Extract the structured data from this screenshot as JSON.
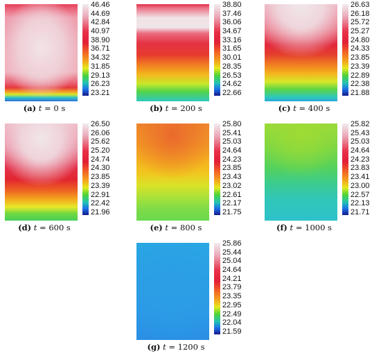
{
  "panels": [
    {
      "letter": "(a)",
      "var": "t",
      "eq": " = ",
      "time": "0 s",
      "ticks": [
        "46.46",
        "44.69",
        "42.84",
        "40.97",
        "38.90",
        "36.71",
        "34.32",
        "31.85",
        "29.13",
        "26.23",
        "23.21"
      ]
    },
    {
      "letter": "(b)",
      "var": "t",
      "eq": " = ",
      "time": "200 s",
      "ticks": [
        "38.80",
        "37.46",
        "36.06",
        "34.67",
        "33.16",
        "31.65",
        "30.01",
        "28.35",
        "26.53",
        "24.62",
        "22.66"
      ]
    },
    {
      "letter": "(c)",
      "var": "t",
      "eq": " = ",
      "time": "400 s",
      "ticks": [
        "26.63",
        "26.18",
        "25.72",
        "25.27",
        "24.80",
        "24.33",
        "23.85",
        "23.39",
        "22.89",
        "22.38",
        "21.88"
      ]
    },
    {
      "letter": "(d)",
      "var": "t",
      "eq": " = ",
      "time": "600 s",
      "ticks": [
        "26.50",
        "26.06",
        "25.62",
        "25.20",
        "24.74",
        "24.30",
        "23.85",
        "23.39",
        "22.91",
        "22.42",
        "21.96"
      ]
    },
    {
      "letter": "(e)",
      "var": "t",
      "eq": " = ",
      "time": "800 s",
      "ticks": [
        "25.80",
        "25.41",
        "25.03",
        "24.64",
        "24.23",
        "23.85",
        "23.43",
        "23.02",
        "22.61",
        "22.17",
        "21.75"
      ]
    },
    {
      "letter": "(f)",
      "var": "t",
      "eq": " = ",
      "time": "1000 s",
      "ticks": [
        "25.82",
        "25.43",
        "25.03",
        "24.64",
        "24.23",
        "23.83",
        "23.41",
        "23.00",
        "22.57",
        "22.13",
        "21.71"
      ]
    },
    {
      "letter": "(g)",
      "var": "t",
      "eq": " = ",
      "time": "1200 s",
      "ticks": [
        "25.86",
        "25.44",
        "25.04",
        "24.64",
        "24.21",
        "23.79",
        "23.35",
        "22.95",
        "22.49",
        "22.04",
        "21.59"
      ]
    }
  ]
}
